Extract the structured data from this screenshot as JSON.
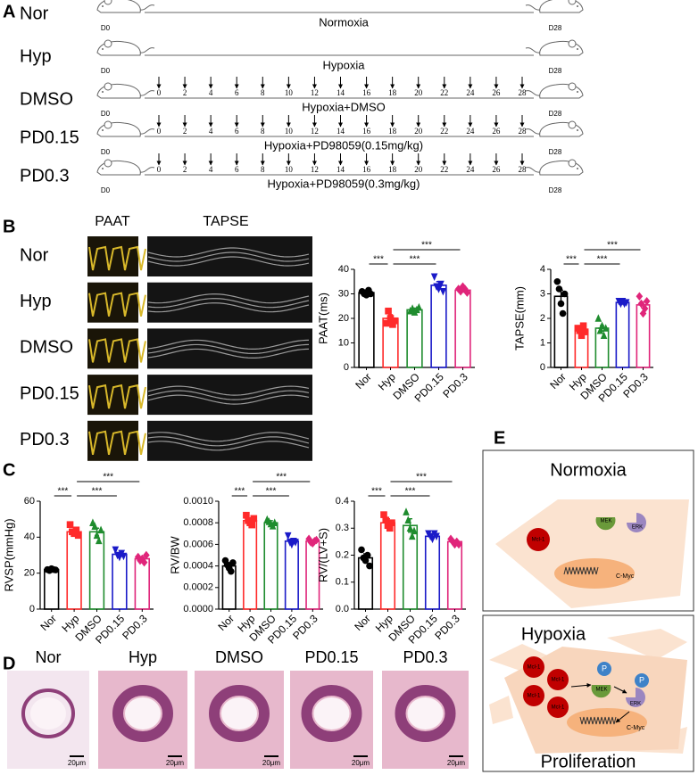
{
  "panel_labels": [
    "A",
    "B",
    "C",
    "D",
    "E"
  ],
  "panel_a": {
    "injection_days": [
      0,
      2,
      4,
      6,
      8,
      10,
      12,
      14,
      16,
      18,
      20,
      22,
      24,
      26,
      28
    ],
    "rows": [
      {
        "label": "Nor",
        "condition": "Normoxia",
        "start": "D0",
        "end": "D28",
        "injections": false
      },
      {
        "label": "Hyp",
        "condition": "Hypoxia",
        "start": "D0",
        "end": "D28",
        "injections": false
      },
      {
        "label": "DMSO",
        "condition": "Hypoxia+DMSO",
        "start": "D0",
        "end": "D28",
        "injections": true
      },
      {
        "label": "PD0.15",
        "condition": "Hypoxia+PD98059(0.15mg/kg)",
        "start": "D0",
        "end": "D28",
        "injections": true
      },
      {
        "label": "PD0.3",
        "condition": "Hypoxia+PD98059(0.3mg/kg)",
        "start": "D0",
        "end": "D28",
        "injections": true
      }
    ]
  },
  "panel_b": {
    "columns": [
      "PAAT",
      "TAPSE"
    ],
    "rows": [
      "Nor",
      "Hyp",
      "DMSO",
      "PD0.15",
      "PD0.3"
    ]
  },
  "chart_data": [
    {
      "type": "bar",
      "ylabel": "PAAT(ms)",
      "categories": [
        "Nor",
        "Hyp",
        "DMSO",
        "PD0.15",
        "PD0.3"
      ],
      "colors": [
        "#000000",
        "#ff2a2a",
        "#1f8c2e",
        "#1a1ac8",
        "#e0257a"
      ],
      "markers": [
        "circle",
        "square",
        "triangle-up",
        "triangle-down",
        "diamond"
      ],
      "values": [
        30.5,
        20,
        23.5,
        33.5,
        31.5
      ],
      "errors": [
        1,
        1.5,
        0.7,
        1.5,
        0.8
      ],
      "points": [
        [
          31,
          30,
          29.5,
          31.5,
          30
        ],
        [
          18,
          23,
          20,
          17.5,
          19
        ],
        [
          23,
          24,
          22.5,
          23.5,
          24.5
        ],
        [
          37,
          33,
          32,
          34,
          31
        ],
        [
          32,
          31,
          33,
          32,
          30.5
        ]
      ],
      "ylim": [
        0,
        40
      ],
      "yticks": [
        0,
        10,
        20,
        30,
        40
      ],
      "significance": [
        {
          "from": "Nor",
          "to": "Hyp",
          "label": "***"
        },
        {
          "from": "Hyp",
          "to": "PD0.15",
          "label": "***"
        },
        {
          "from": "Hyp",
          "to": "PD0.3",
          "label": "***"
        }
      ]
    },
    {
      "type": "bar",
      "ylabel": "TAPSE(mm)",
      "categories": [
        "Nor",
        "Hyp",
        "DMSO",
        "PD0.15",
        "PD0.3"
      ],
      "colors": [
        "#000000",
        "#ff2a2a",
        "#1f8c2e",
        "#1a1ac8",
        "#e0257a"
      ],
      "markers": [
        "circle",
        "square",
        "triangle-up",
        "triangle-down",
        "diamond"
      ],
      "values": [
        2.9,
        1.5,
        1.6,
        2.65,
        2.55
      ],
      "errors": [
        0.25,
        0.07,
        0.12,
        0.03,
        0.12
      ],
      "points": [
        [
          3.5,
          3.2,
          2.6,
          2.2,
          3.0
        ],
        [
          1.6,
          1.5,
          1.3,
          1.7,
          1.45
        ],
        [
          2.0,
          1.5,
          1.7,
          1.3,
          1.6
        ],
        [
          2.7,
          2.6,
          2.7,
          2.6,
          2.65
        ],
        [
          2.9,
          2.6,
          2.2,
          2.4,
          2.7
        ]
      ],
      "ylim": [
        0,
        4
      ],
      "yticks": [
        0,
        1,
        2,
        3,
        4
      ],
      "significance": [
        {
          "from": "Nor",
          "to": "Hyp",
          "label": "***"
        },
        {
          "from": "Hyp",
          "to": "PD0.15",
          "label": "***"
        },
        {
          "from": "Hyp",
          "to": "PD0.3",
          "label": "***"
        }
      ]
    },
    {
      "type": "bar",
      "ylabel": "RVSP(mmHg)",
      "categories": [
        "Nor",
        "Hyp",
        "DMSO",
        "PD0.15",
        "PD0.3"
      ],
      "colors": [
        "#000000",
        "#ff2a2a",
        "#1f8c2e",
        "#1a1ac8",
        "#e0257a"
      ],
      "markers": [
        "circle",
        "square",
        "triangle-up",
        "triangle-down",
        "diamond"
      ],
      "values": [
        22,
        43,
        43,
        30.5,
        28
      ],
      "errors": [
        0.3,
        1.2,
        2,
        0.8,
        0.7
      ],
      "points": [
        [
          22,
          21.5,
          22.5,
          22,
          21.8
        ],
        [
          47,
          43,
          42,
          44,
          41
        ],
        [
          48,
          46,
          41,
          38,
          44
        ],
        [
          33,
          30,
          29,
          31,
          29.5
        ],
        [
          29,
          27,
          28,
          26,
          30
        ]
      ],
      "ylim": [
        0,
        60
      ],
      "yticks": [
        0,
        20,
        40,
        60
      ],
      "significance": [
        {
          "from": "Nor",
          "to": "Hyp",
          "label": "***"
        },
        {
          "from": "Hyp",
          "to": "PD0.15",
          "label": "***"
        },
        {
          "from": "Hyp",
          "to": "PD0.3",
          "label": "***"
        }
      ]
    },
    {
      "type": "bar",
      "ylabel": "RV/BW",
      "categories": [
        "Nor",
        "Hyp",
        "DMSO",
        "PD0.15",
        "PD0.3"
      ],
      "colors": [
        "#000000",
        "#ff2a2a",
        "#1f8c2e",
        "#1a1ac8",
        "#e0257a"
      ],
      "markers": [
        "circle",
        "square",
        "triangle-up",
        "triangle-down",
        "diamond"
      ],
      "values": [
        0.0004,
        0.00082,
        0.0008,
        0.00063,
        0.00063
      ],
      "errors": [
        3e-05,
        2e-05,
        2e-05,
        2e-05,
        1e-05
      ],
      "points": [
        [
          0.00045,
          0.00041,
          0.00038,
          0.00035,
          0.00043
        ],
        [
          0.00087,
          0.00082,
          0.0008,
          0.00078,
          0.00084
        ],
        [
          0.00083,
          0.00081,
          0.00079,
          0.00077,
          0.0008
        ],
        [
          0.00068,
          0.00062,
          0.0006,
          0.00063,
          0.00062
        ],
        [
          0.00065,
          0.00062,
          0.00061,
          0.00063,
          0.00064
        ]
      ],
      "ylim": [
        0,
        0.001
      ],
      "yticks": [
        {
          "value": 0,
          "label": "0.0000"
        },
        {
          "value": 0.0002,
          "label": "0.0002"
        },
        {
          "value": 0.0004,
          "label": "0.0004"
        },
        {
          "value": 0.0006,
          "label": "0.0006"
        },
        {
          "value": 0.0008,
          "label": "0.0008"
        },
        {
          "value": 0.001,
          "label": "0.0010"
        }
      ],
      "significance": [
        {
          "from": "Nor",
          "to": "Hyp",
          "label": "***"
        },
        {
          "from": "Hyp",
          "to": "PD0.15",
          "label": "***"
        },
        {
          "from": "Hyp",
          "to": "PD0.3",
          "label": "***"
        }
      ]
    },
    {
      "type": "bar",
      "ylabel": "RV/(LV+S)",
      "categories": [
        "Nor",
        "Hyp",
        "DMSO",
        "PD0.15",
        "PD0.3"
      ],
      "colors": [
        "#000000",
        "#ff2a2a",
        "#1f8c2e",
        "#1a1ac8",
        "#e0257a"
      ],
      "markers": [
        "circle",
        "square",
        "triangle-up",
        "triangle-down",
        "diamond"
      ],
      "values": [
        0.19,
        0.32,
        0.31,
        0.27,
        0.25
      ],
      "errors": [
        0.015,
        0.015,
        0.025,
        0.008,
        0.006
      ],
      "points": [
        [
          0.22,
          0.19,
          0.18,
          0.2,
          0.16
        ],
        [
          0.35,
          0.33,
          0.31,
          0.3,
          0.32
        ],
        [
          0.36,
          0.33,
          0.3,
          0.27,
          0.29
        ],
        [
          0.28,
          0.27,
          0.26,
          0.28,
          0.27
        ],
        [
          0.26,
          0.25,
          0.24,
          0.25,
          0.24
        ]
      ],
      "ylim": [
        0,
        0.4
      ],
      "yticks": [
        {
          "value": 0,
          "label": "0.0"
        },
        {
          "value": 0.1,
          "label": "0.1"
        },
        {
          "value": 0.2,
          "label": "0.2"
        },
        {
          "value": 0.3,
          "label": "0.3"
        },
        {
          "value": 0.4,
          "label": "0.4"
        }
      ],
      "significance": [
        {
          "from": "Nor",
          "to": "Hyp",
          "label": "***"
        },
        {
          "from": "Hyp",
          "to": "PD0.15",
          "label": "***"
        },
        {
          "from": "Hyp",
          "to": "PD0.3",
          "label": "***"
        }
      ]
    }
  ],
  "panel_d": {
    "labels": [
      "Nor",
      "Hyp",
      "DMSO",
      "PD0.15",
      "PD0.3"
    ],
    "scale": "20μm"
  },
  "panel_e": {
    "normoxia": {
      "title": "Normoxia",
      "mcl1": [
        "Mcl-1"
      ],
      "mek": "MEK",
      "erk": "ERK",
      "cmyc": "C-Myc"
    },
    "hypoxia": {
      "title": "Hypoxia",
      "mcl1": [
        "Mcl-1",
        "Mcl-1",
        "Mcl-1",
        "Mcl-1"
      ],
      "phospho": [
        "P",
        "P"
      ],
      "mek": "MEK",
      "erk": "ERK",
      "cmyc": "C-Myc",
      "outcome": "Proliferation"
    }
  }
}
